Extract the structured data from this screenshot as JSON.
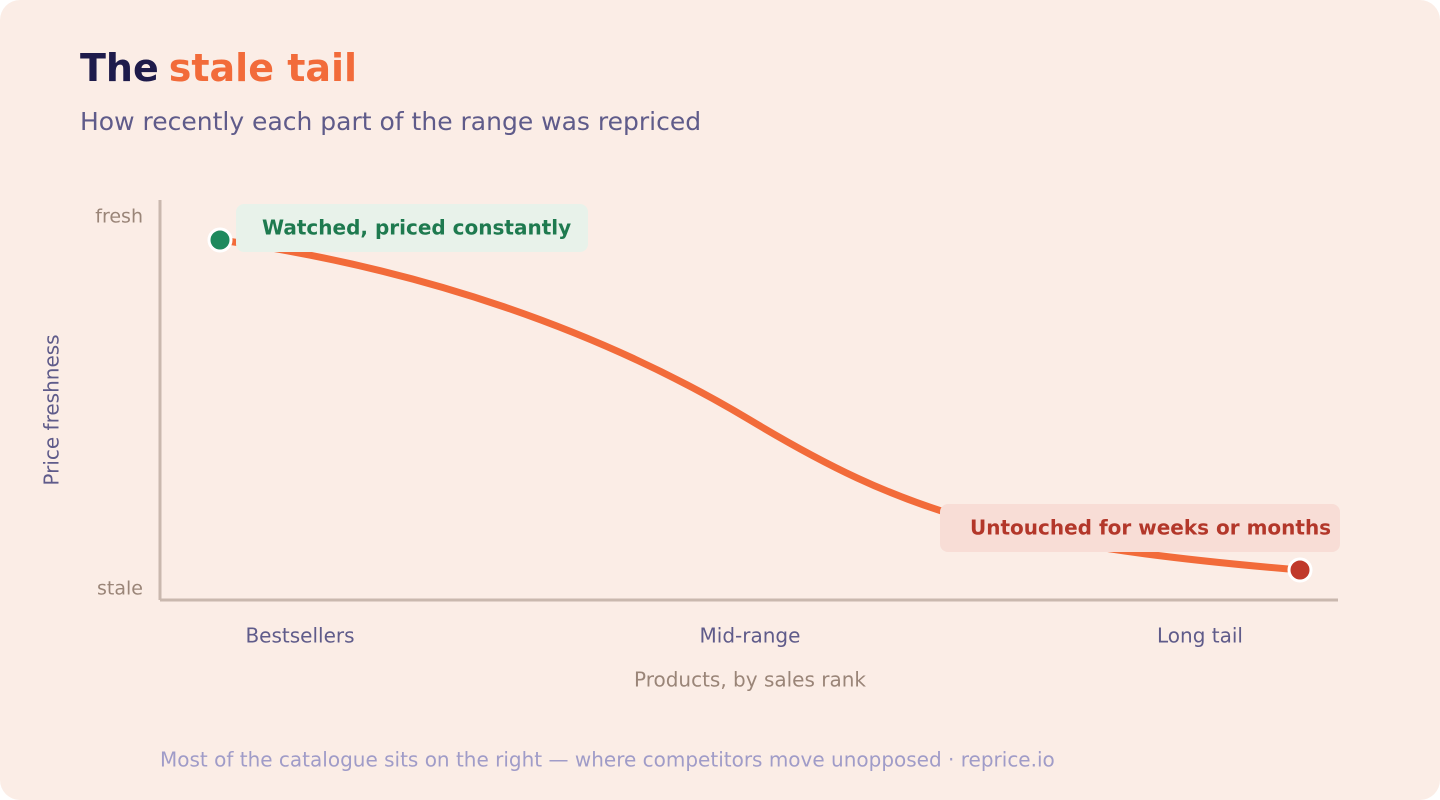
{
  "header": {
    "title_lead": "The",
    "title_accent": "stale tail",
    "subtitle": "How recently each part of the range was repriced"
  },
  "y_axis": {
    "label": "Price freshness",
    "top": "fresh",
    "bottom": "stale"
  },
  "x_axis": {
    "label": "Products, by sales rank",
    "categories": [
      "Bestsellers",
      "Mid-range",
      "Long tail"
    ]
  },
  "annotations": {
    "start": "Watched, priced constantly",
    "end": "Untouched for weeks or months"
  },
  "footer": "Most of the catalogue sits on the right — where competitors move unopposed · reprice.io"
}
